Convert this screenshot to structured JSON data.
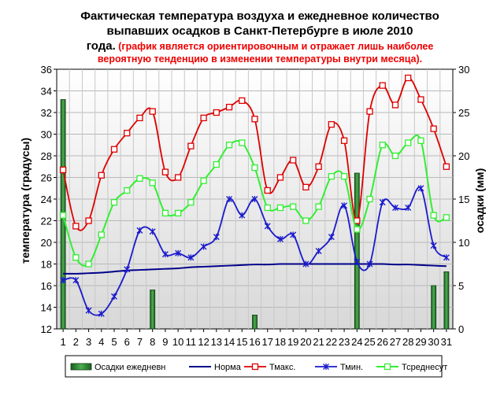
{
  "chart_data": {
    "type": "bar+line",
    "title_lines": [
      "Фактическая температура воздуха и ежедневное количество",
      "выпавших осадков в Санкт-Петербурге в июле 2010"
    ],
    "title_line3_black": "года.",
    "title_line3_red": " (график является ориентировочным и отражает лишь наиболее",
    "title_line4_red": "вероятную тенденцию  в изменении температуры внутри месяца).",
    "ylabel_left": "температура (градусы)",
    "ylabel_right": "осадки (мм)",
    "ylim_left": [
      12,
      36
    ],
    "yticks_left": [
      "12",
      "14",
      "16",
      "18",
      "20",
      "22",
      "24",
      "26",
      "28",
      "30",
      "32",
      "34",
      "36"
    ],
    "ylim_right": [
      0,
      30
    ],
    "yticks_right": [
      "0",
      "5",
      "10",
      "15",
      "20",
      "25",
      "30"
    ],
    "categories": [
      "1",
      "2",
      "3",
      "4",
      "5",
      "6",
      "7",
      "8",
      "9",
      "10",
      "11",
      "12",
      "13",
      "14",
      "15",
      "16",
      "17",
      "18",
      "19",
      "20",
      "21",
      "22",
      "23",
      "24",
      "25",
      "26",
      "27",
      "28",
      "29",
      "30",
      "31"
    ],
    "grid": true,
    "legend_position": "bottom",
    "colors": {
      "precip": "#2e7d32",
      "norma": "#00008b",
      "tmax": "#dd0000",
      "tmin": "#1a1acc",
      "tavg": "#33ee33"
    },
    "series": [
      {
        "name": "Осадки ежедневн",
        "type": "bar",
        "axis": "right",
        "values": [
          26.5,
          0,
          0,
          0,
          0,
          0,
          0,
          4.5,
          0,
          0,
          0,
          0,
          0,
          0,
          0,
          1.6,
          0,
          0,
          0,
          0,
          0,
          0,
          0,
          18,
          0,
          0,
          0,
          0,
          0,
          5,
          6.6
        ]
      },
      {
        "name": "Норма",
        "type": "line",
        "axis": "left",
        "values": [
          17.1,
          17.1,
          17.15,
          17.2,
          17.3,
          17.4,
          17.45,
          17.5,
          17.55,
          17.6,
          17.7,
          17.75,
          17.8,
          17.85,
          17.9,
          17.95,
          17.95,
          18.0,
          18.0,
          18.0,
          18.0,
          18.0,
          18.0,
          18.0,
          18.0,
          18.0,
          17.95,
          17.95,
          17.9,
          17.85,
          17.8
        ]
      },
      {
        "name": "Тмакс.",
        "type": "line",
        "axis": "left",
        "values": [
          26.7,
          21.5,
          22.0,
          26.2,
          28.6,
          30.1,
          31.5,
          32.1,
          26.5,
          26.0,
          28.9,
          31.5,
          32.0,
          32.5,
          33.1,
          31.4,
          24.8,
          26.0,
          27.6,
          25.1,
          27.0,
          30.9,
          29.4,
          22.0,
          32.1,
          34.5,
          32.7,
          35.2,
          33.2,
          30.5,
          27.0
        ]
      },
      {
        "name": "Тмин.",
        "type": "line",
        "axis": "left",
        "values": [
          16.5,
          16.5,
          13.7,
          13.4,
          15.0,
          17.5,
          21.1,
          21.0,
          18.9,
          19.0,
          18.6,
          19.6,
          20.5,
          24.0,
          22.5,
          24.0,
          21.5,
          20.3,
          20.7,
          18.0,
          19.2,
          20.5,
          23.4,
          18.2,
          18.0,
          23.7,
          23.2,
          23.2,
          25.0,
          19.7,
          18.6
        ]
      },
      {
        "name": "Тсреднесут",
        "type": "line",
        "axis": "left",
        "values": [
          22.5,
          18.6,
          18.0,
          20.7,
          23.7,
          24.8,
          25.9,
          25.5,
          22.7,
          22.7,
          23.7,
          25.7,
          27.2,
          29.0,
          29.2,
          26.9,
          23.2,
          23.2,
          23.3,
          22.0,
          23.3,
          26.1,
          26.1,
          21.2,
          24.0,
          29.0,
          28.0,
          29.2,
          29.4,
          22.5,
          22.3
        ]
      }
    ]
  }
}
